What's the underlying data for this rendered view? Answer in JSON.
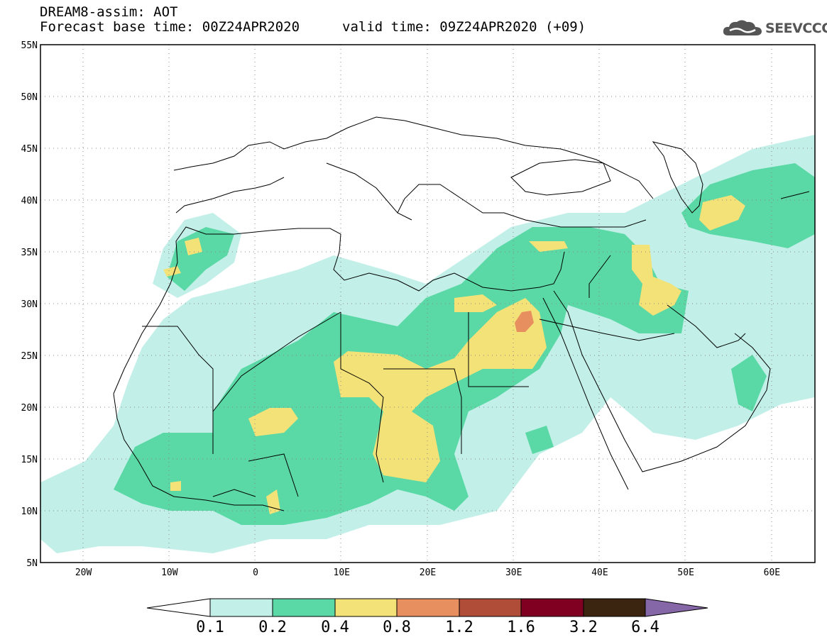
{
  "header": {
    "title_line1": "DREAM8-assim: AOT",
    "title_line2": "Forecast base time: 00Z24APR2020",
    "valid_time": "valid time: 09Z24APR2020 (+09)",
    "logo_text": "SEEVCCC",
    "logo_icon": "cloud-icon"
  },
  "map": {
    "lon_range": [
      -25,
      65
    ],
    "lat_range": [
      5,
      55
    ],
    "lat_labels": [
      "55N",
      "50N",
      "45N",
      "40N",
      "35N",
      "30N",
      "25N",
      "20N",
      "15N",
      "10N",
      "5N"
    ],
    "lon_labels": [
      "20W",
      "10W",
      "0",
      "10E",
      "20E",
      "30E",
      "40E",
      "50E",
      "60E"
    ],
    "grid": "dotted"
  },
  "colorbar": {
    "labels": [
      "0.1",
      "0.2",
      "0.4",
      "0.8",
      "1.2",
      "1.6",
      "3.2",
      "6.4"
    ],
    "colors": {
      "below": "#ffffff",
      "c1": "#c2f0e8",
      "c2": "#5ad9a6",
      "c3": "#f3e277",
      "c4": "#e88f60",
      "c5": "#b04d38",
      "c6": "#800022",
      "c7": "#3b2410",
      "above": "#8566a6"
    }
  }
}
